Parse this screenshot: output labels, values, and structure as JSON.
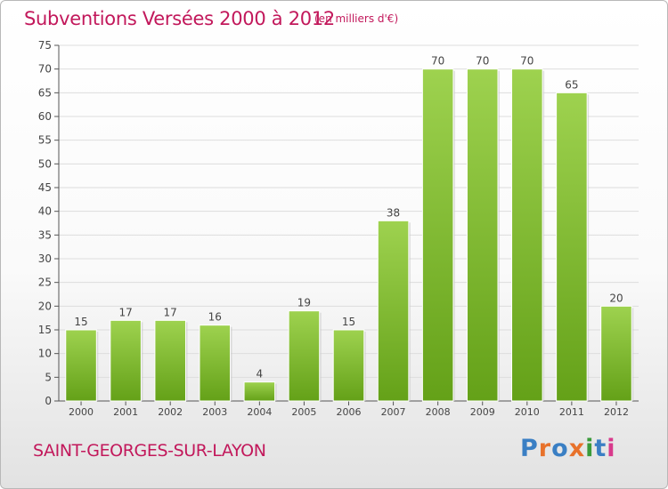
{
  "header": {
    "title": "Subventions Versées 2000 à 2012",
    "subtitle": "(en milliers d'€)"
  },
  "footer": {
    "place": "SAINT-GEORGES-SUR-LAYON",
    "logo_text": "Proxiti",
    "logo_colors": [
      "#3a7fc4",
      "#e8722b",
      "#3a7fc4",
      "#e8722b",
      "#3a9b3a",
      "#3a7fc4",
      "#d83a8c"
    ]
  },
  "chart_data": {
    "type": "bar",
    "title": "Subventions Versées 2000 à 2012",
    "subtitle": "(en milliers d'€)",
    "xlabel": "",
    "ylabel": "",
    "categories": [
      "2000",
      "2001",
      "2002",
      "2003",
      "2004",
      "2005",
      "2006",
      "2007",
      "2008",
      "2009",
      "2010",
      "2011",
      "2012"
    ],
    "values": [
      15,
      17,
      17,
      16,
      4,
      19,
      15,
      38,
      70,
      70,
      70,
      65,
      20
    ],
    "ylim": [
      0,
      75
    ],
    "yticks": [
      0,
      5,
      10,
      15,
      20,
      25,
      30,
      35,
      40,
      45,
      50,
      55,
      60,
      65,
      70,
      75
    ],
    "grid": true,
    "bar_color_top": "#9ed24f",
    "bar_color_bottom": "#64a118",
    "grid_color": "#dddddd"
  }
}
